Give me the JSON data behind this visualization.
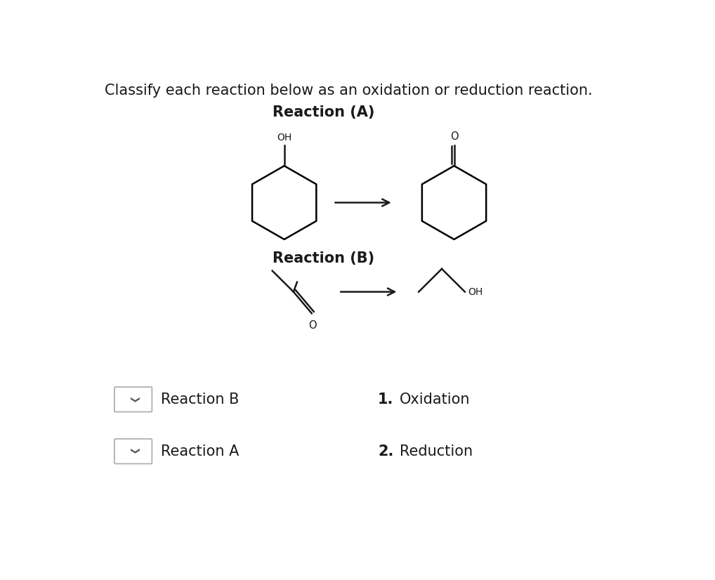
{
  "title": "Classify each reaction below as an oxidation or reduction reaction.",
  "reaction_a_label": "Reaction (A)",
  "reaction_b_label": "Reaction (B)",
  "answer1_label": "1.",
  "answer1_text": "Oxidation",
  "answer2_label": "2.",
  "answer2_text": "Reduction",
  "reaction_b_text": "Reaction B",
  "reaction_a_text": "Reaction A",
  "bg_color": "#ffffff",
  "text_color": "#1a1a1a",
  "line_color": "#1a1a1a",
  "title_fontsize": 15,
  "label_fontsize": 14,
  "answer_fontsize": 15
}
